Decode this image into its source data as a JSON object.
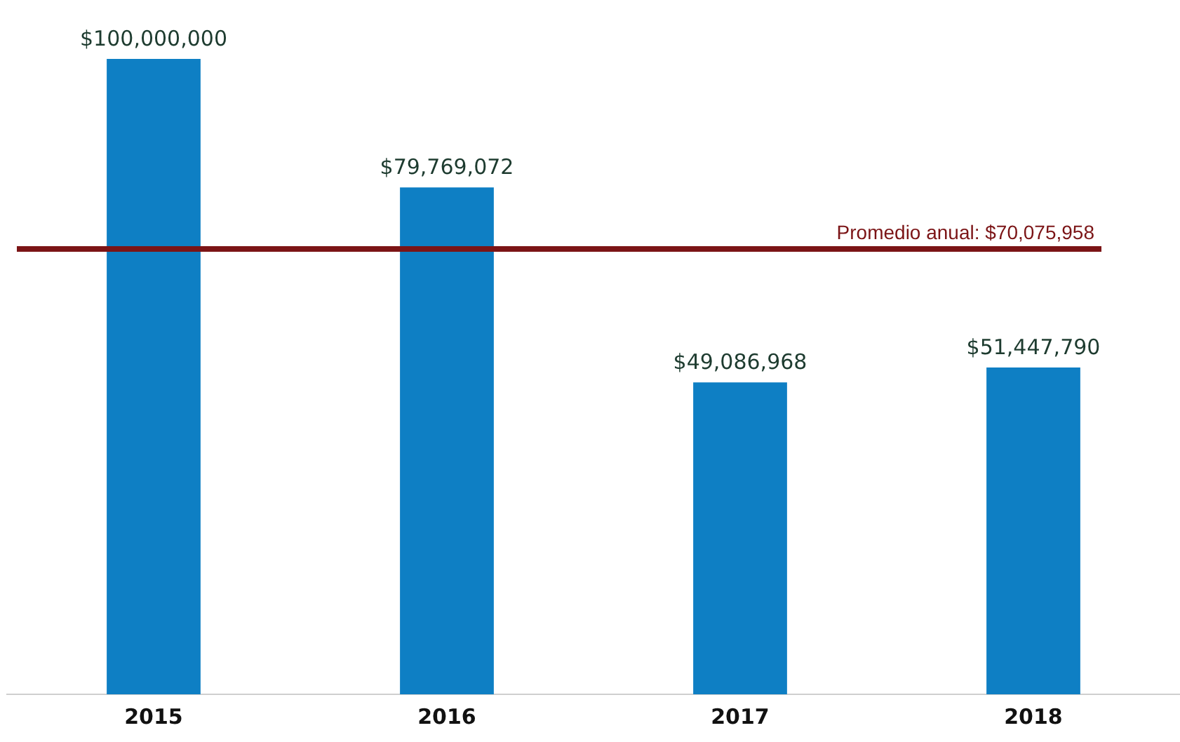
{
  "chart_data": {
    "type": "bar",
    "categories": [
      "2015",
      "2016",
      "2017",
      "2018"
    ],
    "values": [
      100000000,
      79769072,
      49086968,
      51447790
    ],
    "value_labels": [
      "$100,000,000",
      "$79,769,072",
      "$49,086,968",
      "$51,447,790"
    ],
    "color": "#0e7fc4",
    "ref_lines": [
      {
        "axis": "y",
        "value": 70075958,
        "label": "Promedio anual: $70,075,958",
        "color": "#7b1416"
      }
    ],
    "grid": false,
    "legend": false
  }
}
